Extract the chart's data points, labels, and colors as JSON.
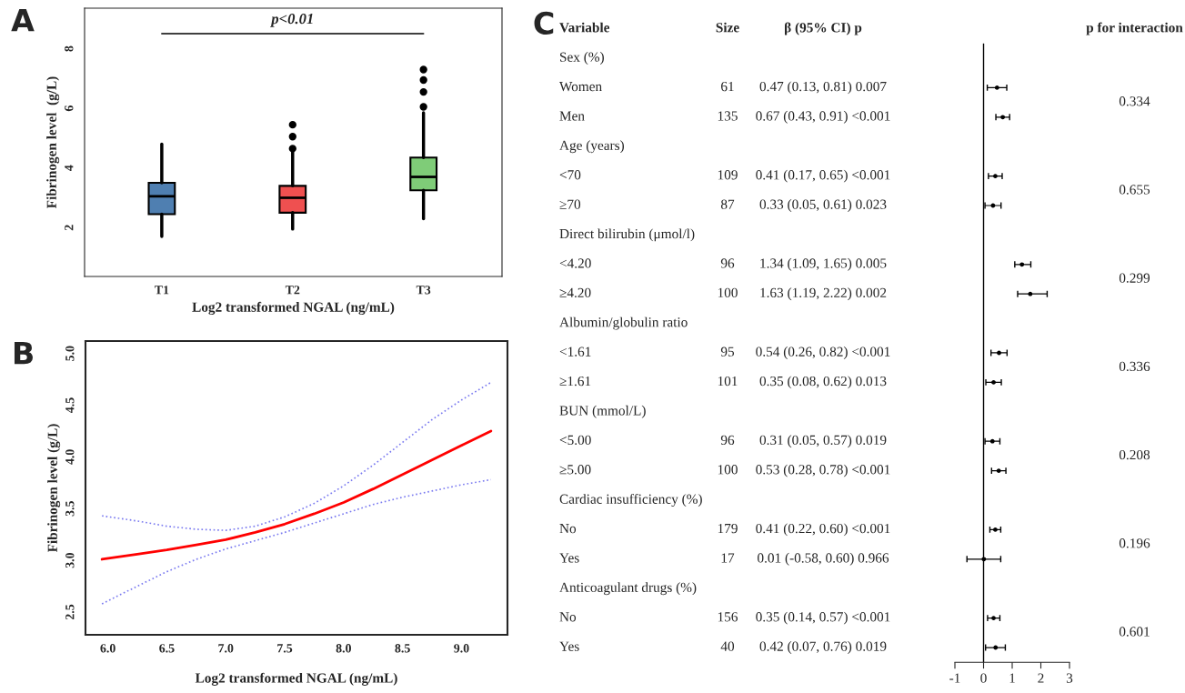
{
  "chart_data": [
    {
      "type": "box",
      "xlabel": "Log2 transformed NGAL (ng/mL)",
      "ylabel": "Fibrinogen level  (g/L)",
      "categories": [
        "T1",
        "T2",
        "T3"
      ],
      "colors": [
        "#4f7fb1",
        "#ef5050",
        "#7fcc78"
      ],
      "boxes": [
        {
          "low": 1.7,
          "q1": 2.45,
          "median": 3.05,
          "q3": 3.5,
          "high": 4.8
        },
        {
          "low": 1.95,
          "q1": 2.5,
          "median": 3.0,
          "q3": 3.4,
          "high": 4.6,
          "outliers": [
            4.65,
            5.05,
            5.45
          ]
        },
        {
          "low": 2.3,
          "q1": 3.25,
          "median": 3.7,
          "q3": 4.35,
          "high": 5.85,
          "outliers": [
            6.05,
            6.55,
            6.95,
            7.3
          ]
        }
      ],
      "ylim": [
        0.36,
        9.36
      ],
      "yticks": [
        2,
        4,
        6,
        8
      ],
      "grid": false,
      "annotations": [
        "A",
        "p<0.01"
      ]
    },
    {
      "type": "line",
      "xlabel": "Log2 transformed NGAL (ng/mL)",
      "ylabel": "Fibrinogen level (g/L)",
      "x": [
        5.95,
        6.25,
        6.5,
        6.75,
        7.0,
        7.25,
        7.5,
        7.75,
        8.0,
        8.25,
        8.5,
        8.75,
        9.0,
        9.25
      ],
      "series": [
        {
          "color": "#ff0000",
          "line_style": "solid",
          "values": [
            3.01,
            3.06,
            3.1,
            3.15,
            3.2,
            3.27,
            3.35,
            3.45,
            3.56,
            3.69,
            3.83,
            3.97,
            4.11,
            4.25
          ]
        },
        {
          "color": "#7b7bf0",
          "line_style": "dotted",
          "values": [
            3.43,
            3.38,
            3.33,
            3.3,
            3.29,
            3.33,
            3.42,
            3.55,
            3.72,
            3.92,
            4.14,
            4.36,
            4.55,
            4.72
          ]
        },
        {
          "color": "#7b7bf0",
          "line_style": "dotted",
          "values": [
            2.58,
            2.75,
            2.89,
            3.01,
            3.11,
            3.19,
            3.27,
            3.36,
            3.45,
            3.54,
            3.61,
            3.67,
            3.73,
            3.78
          ]
        }
      ],
      "xlim": [
        5.81,
        9.39
      ],
      "xticks": [
        {
          "value": 6,
          "label": "6.0"
        },
        {
          "value": 6.5,
          "label": "6.5"
        },
        {
          "value": 7,
          "label": "7.0"
        },
        {
          "value": 7.5,
          "label": "7.5"
        },
        {
          "value": 8,
          "label": "8.0"
        },
        {
          "value": 8.5,
          "label": "8.5"
        },
        {
          "value": 9,
          "label": "9.0"
        }
      ],
      "ylim": [
        2.28,
        5.12
      ],
      "yticks": [
        {
          "value": 2.5,
          "label": "2.5"
        },
        {
          "value": 3,
          "label": "3.0"
        },
        {
          "value": 3.5,
          "label": "3.5"
        },
        {
          "value": 4,
          "label": "4.0"
        },
        {
          "value": 4.5,
          "label": "4.5"
        },
        {
          "value": 5,
          "label": "5.0"
        }
      ],
      "grid": false,
      "marker": "none",
      "annotations": [
        "B"
      ]
    },
    {
      "type": "other",
      "title": "Variable",
      "annotations": [
        "C",
        "Sex (%)",
        "Women",
        "Men",
        "Age (years)",
        "<70",
        "≥70",
        "Direct bilirubin (μmol/l)",
        "<4.20",
        "≥4.20",
        "Albumin/globulin ratio",
        "<1.61",
        "≥1.61",
        "BUN (mmol/L)",
        "<5.00",
        "≥5.00",
        "Cardiac insufficiency (%)",
        "No",
        "Yes",
        "Anticoagulant drugs (%)",
        "No",
        "Yes"
      ]
    },
    {
      "type": "other",
      "title": "Size",
      "annotations": [
        null,
        "61",
        "135",
        null,
        "109",
        "87",
        null,
        "96",
        "100",
        null,
        "95",
        "101",
        null,
        "96",
        "100",
        null,
        "179",
        "17",
        null,
        "156",
        "40"
      ]
    },
    {
      "type": "other",
      "title": "β (95% CI) p",
      "annotations": [
        null,
        "0.47 (0.13, 0.81) 0.007",
        "0.67 (0.43, 0.91) <0.001",
        null,
        "0.41 (0.17, 0.65) <0.001",
        "0.33 (0.05, 0.61) 0.023",
        null,
        "1.34 (1.09, 1.65) 0.005",
        "1.63 (1.19, 2.22) 0.002",
        null,
        "0.54 (0.26, 0.82) <0.001",
        "0.35 (0.08, 0.62) 0.013",
        null,
        "0.31 (0.05, 0.57) 0.019",
        "0.53 (0.28, 0.78) <0.001",
        null,
        "0.41 (0.22, 0.60) <0.001",
        "0.01 (-0.58, 0.60) 0.966",
        null,
        "0.35 (0.14, 0.57) <0.001",
        "0.42 (0.07, 0.76) 0.019"
      ]
    },
    {
      "type": "scatter",
      "orientation": "horizontal",
      "tick_labels": "x",
      "marker": "circle",
      "categories": [
        null,
        null,
        null,
        null,
        null,
        null,
        null,
        null,
        null,
        null,
        null,
        null,
        null,
        null,
        null,
        null,
        null,
        null,
        null,
        null,
        null
      ],
      "values": [
        null,
        0.47,
        0.67,
        null,
        0.41,
        0.33,
        null,
        1.34,
        1.63,
        null,
        0.54,
        0.35,
        null,
        0.31,
        0.53,
        null,
        0.41,
        0.01,
        null,
        0.35,
        0.42
      ],
      "errors": [
        null,
        [
          0.13,
          0.81
        ],
        [
          0.43,
          0.91
        ],
        null,
        [
          0.17,
          0.65
        ],
        [
          0.05,
          0.61
        ],
        null,
        [
          1.09,
          1.65
        ],
        [
          1.19,
          2.22
        ],
        null,
        [
          0.26,
          0.82
        ],
        [
          0.08,
          0.62
        ],
        null,
        [
          0.05,
          0.57
        ],
        [
          0.28,
          0.78
        ],
        null,
        [
          0.22,
          0.6
        ],
        [
          -0.58,
          0.6
        ],
        null,
        [
          0.14,
          0.57
        ],
        [
          0.07,
          0.76
        ]
      ],
      "xlim": [
        -1,
        3
      ],
      "xticks": [
        -1,
        0,
        1,
        2,
        3
      ],
      "ref_lines": [
        {
          "axis": "x",
          "value": 0
        }
      ],
      "color": "#000000"
    },
    {
      "type": "other",
      "title": "p for interaction",
      "annotations": [
        "0.334",
        "0.655",
        "0.299",
        "0.336",
        "0.208",
        "0.196",
        "0.601"
      ]
    }
  ]
}
